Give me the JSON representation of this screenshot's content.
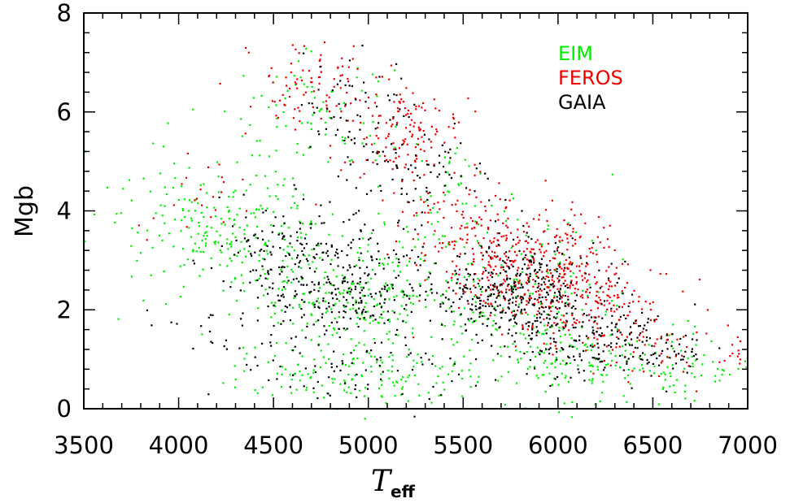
{
  "chart_data": {
    "type": "scatter",
    "title": "",
    "ylabel": "Mgb",
    "xlabel_main": "T",
    "xlabel_sub": "eff",
    "xlim": [
      3500,
      7000
    ],
    "ylim": [
      0,
      8
    ],
    "xticks": [
      3500,
      4000,
      4500,
      5000,
      5500,
      6000,
      6500,
      7000
    ],
    "yticks": [
      0,
      2,
      4,
      6,
      8
    ],
    "xtick_labels": [
      "3500",
      "4000",
      "4500",
      "5000",
      "5500",
      "6000",
      "6500",
      "7000"
    ],
    "ytick_labels": [
      "0",
      "2",
      "4",
      "6",
      "8"
    ],
    "legend_placement": "top-right",
    "series": [
      {
        "name": "EIM",
        "color": "#00ee00",
        "seed": 7,
        "clusters": [
          {
            "n": 230,
            "cx": 4300,
            "cy": 3.6,
            "sx": 260,
            "sy": 0.75
          },
          {
            "n": 220,
            "cx": 4950,
            "cy": 2.3,
            "sx": 230,
            "sy": 0.6
          },
          {
            "n": 160,
            "cx": 4950,
            "cy": 0.75,
            "sx": 330,
            "sy": 0.3
          },
          {
            "n": 70,
            "cx": 4750,
            "cy": 6.1,
            "sx": 230,
            "sy": 0.7
          },
          {
            "n": 170,
            "cx": 5800,
            "cy": 2.2,
            "sx": 270,
            "sy": 0.75
          },
          {
            "n": 140,
            "cx": 6250,
            "cy": 1.0,
            "sx": 260,
            "sy": 0.4
          },
          {
            "n": 50,
            "cx": 5450,
            "cy": 4.1,
            "sx": 160,
            "sy": 0.6
          },
          {
            "n": 35,
            "cx": 6800,
            "cy": 0.7,
            "sx": 150,
            "sy": 0.25
          },
          {
            "n": 30,
            "cx": 4000,
            "cy": 4.6,
            "sx": 350,
            "sy": 1.0
          }
        ]
      },
      {
        "name": "FEROS",
        "color": "#ee0000",
        "seed": 13,
        "clusters": [
          {
            "n": 130,
            "cx": 5150,
            "cy": 5.6,
            "sx": 160,
            "sy": 0.5
          },
          {
            "n": 90,
            "cx": 4700,
            "cy": 6.5,
            "sx": 180,
            "sy": 0.5
          },
          {
            "n": 330,
            "cx": 5850,
            "cy": 2.9,
            "sx": 230,
            "sy": 0.55
          },
          {
            "n": 170,
            "cx": 6150,
            "cy": 2.0,
            "sx": 210,
            "sy": 0.45
          },
          {
            "n": 90,
            "cx": 5500,
            "cy": 3.8,
            "sx": 180,
            "sy": 0.5
          },
          {
            "n": 45,
            "cx": 6550,
            "cy": 1.2,
            "sx": 180,
            "sy": 0.3
          },
          {
            "n": 25,
            "cx": 4150,
            "cy": 4.4,
            "sx": 200,
            "sy": 0.5
          },
          {
            "n": 15,
            "cx": 6900,
            "cy": 1.2,
            "sx": 80,
            "sy": 0.5
          }
        ]
      },
      {
        "name": "GAIA",
        "color": "#000000",
        "seed": 29,
        "clusters": [
          {
            "n": 190,
            "cx": 4650,
            "cy": 3.1,
            "sx": 230,
            "sy": 0.55
          },
          {
            "n": 170,
            "cx": 4950,
            "cy": 2.3,
            "sx": 200,
            "sy": 0.45
          },
          {
            "n": 70,
            "cx": 4900,
            "cy": 0.8,
            "sx": 270,
            "sy": 0.4
          },
          {
            "n": 60,
            "cx": 4900,
            "cy": 6.1,
            "sx": 170,
            "sy": 0.55
          },
          {
            "n": 80,
            "cx": 5250,
            "cy": 4.8,
            "sx": 180,
            "sy": 0.5
          },
          {
            "n": 400,
            "cx": 5800,
            "cy": 2.3,
            "sx": 240,
            "sy": 0.55
          },
          {
            "n": 140,
            "cx": 6250,
            "cy": 1.3,
            "sx": 220,
            "sy": 0.35
          },
          {
            "n": 40,
            "cx": 6550,
            "cy": 1.1,
            "sx": 130,
            "sy": 0.25
          },
          {
            "n": 30,
            "cx": 4250,
            "cy": 1.6,
            "sx": 200,
            "sy": 0.5
          }
        ]
      }
    ]
  }
}
